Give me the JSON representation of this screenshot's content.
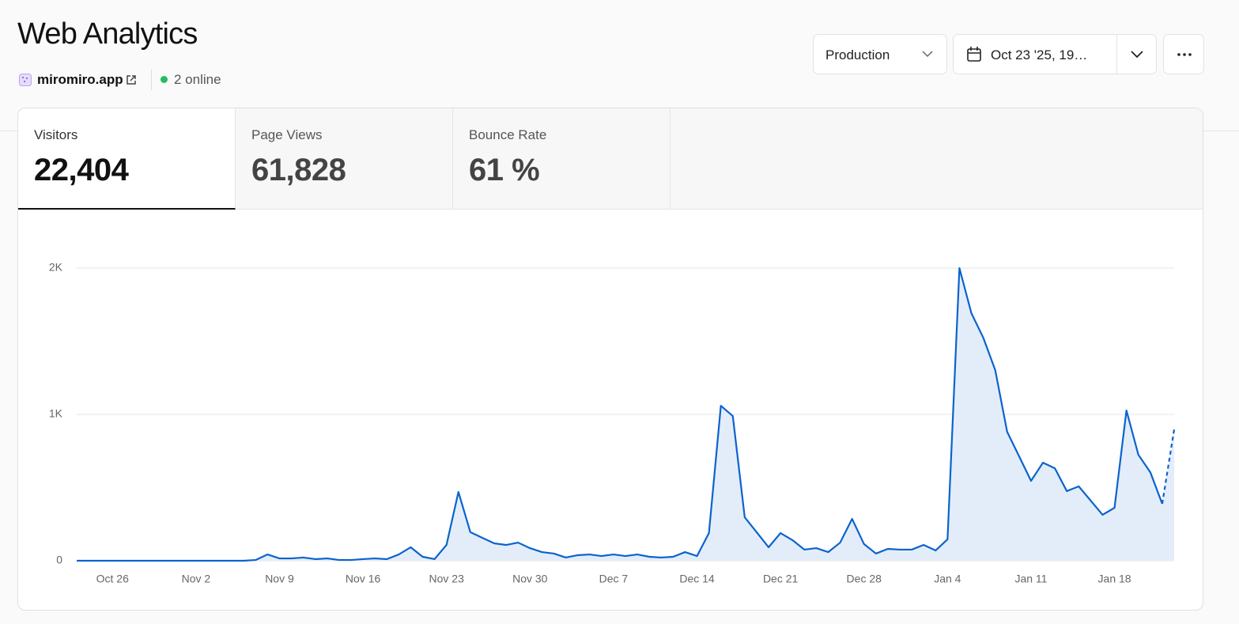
{
  "header": {
    "title": "Web Analytics",
    "site": "miromiro.app",
    "online": "2 online"
  },
  "controls": {
    "environment": "Production",
    "date_range": "Oct 23 '25, 19…"
  },
  "tabs": [
    {
      "label": "Visitors",
      "value": "22,404"
    },
    {
      "label": "Page Views",
      "value": "61,828"
    },
    {
      "label": "Bounce Rate",
      "value": "61 %"
    }
  ],
  "chart_data": {
    "type": "area",
    "color": "#0b63ce",
    "fill": "#e3edf9",
    "grid": true,
    "categories": [
      null,
      null,
      null,
      "Oct 26",
      null,
      null,
      null,
      null,
      null,
      null,
      "Nov 2",
      null,
      null,
      null,
      null,
      null,
      null,
      "Nov 9",
      null,
      null,
      null,
      null,
      null,
      null,
      "Nov 16",
      null,
      null,
      null,
      null,
      null,
      null,
      "Nov 23",
      null,
      null,
      null,
      null,
      null,
      null,
      "Nov 30",
      null,
      null,
      null,
      null,
      null,
      null,
      "Dec 7",
      null,
      null,
      null,
      null,
      null,
      null,
      "Dec 14",
      null,
      null,
      null,
      null,
      null,
      null,
      "Dec 21",
      null,
      null,
      null,
      null,
      null,
      null,
      "Dec 28",
      null,
      null,
      null,
      null,
      null,
      null,
      "Jan 4",
      null,
      null,
      null,
      null,
      null,
      null,
      "Jan 11",
      null,
      null,
      null,
      null,
      null,
      null,
      "Jan 18",
      null,
      null,
      null,
      null,
      null
    ],
    "values": [
      0,
      0,
      0,
      0,
      0,
      0,
      0,
      0,
      0,
      0,
      0,
      0,
      0,
      0,
      0,
      5,
      43,
      16,
      16,
      22,
      11,
      16,
      5,
      5,
      11,
      16,
      11,
      43,
      92,
      27,
      11,
      108,
      470,
      195,
      157,
      119,
      108,
      124,
      86,
      59,
      49,
      22,
      38,
      43,
      32,
      43,
      32,
      43,
      27,
      22,
      27,
      59,
      32,
      189,
      1059,
      989,
      297,
      195,
      92,
      189,
      141,
      76,
      86,
      59,
      124,
      286,
      114,
      49,
      81,
      76,
      76,
      108,
      70,
      146,
      2000,
      1692,
      1524,
      1303,
      881,
      714,
      546,
      670,
      632,
      476,
      508,
      411,
      314,
      362,
      1027,
      724,
      605,
      389,
      897
    ],
    "ylim": [
      0,
      2000
    ],
    "yticks": [
      0,
      {
        "value": 1000,
        "label": "1K"
      },
      {
        "value": 2000,
        "label": "2K"
      }
    ]
  }
}
